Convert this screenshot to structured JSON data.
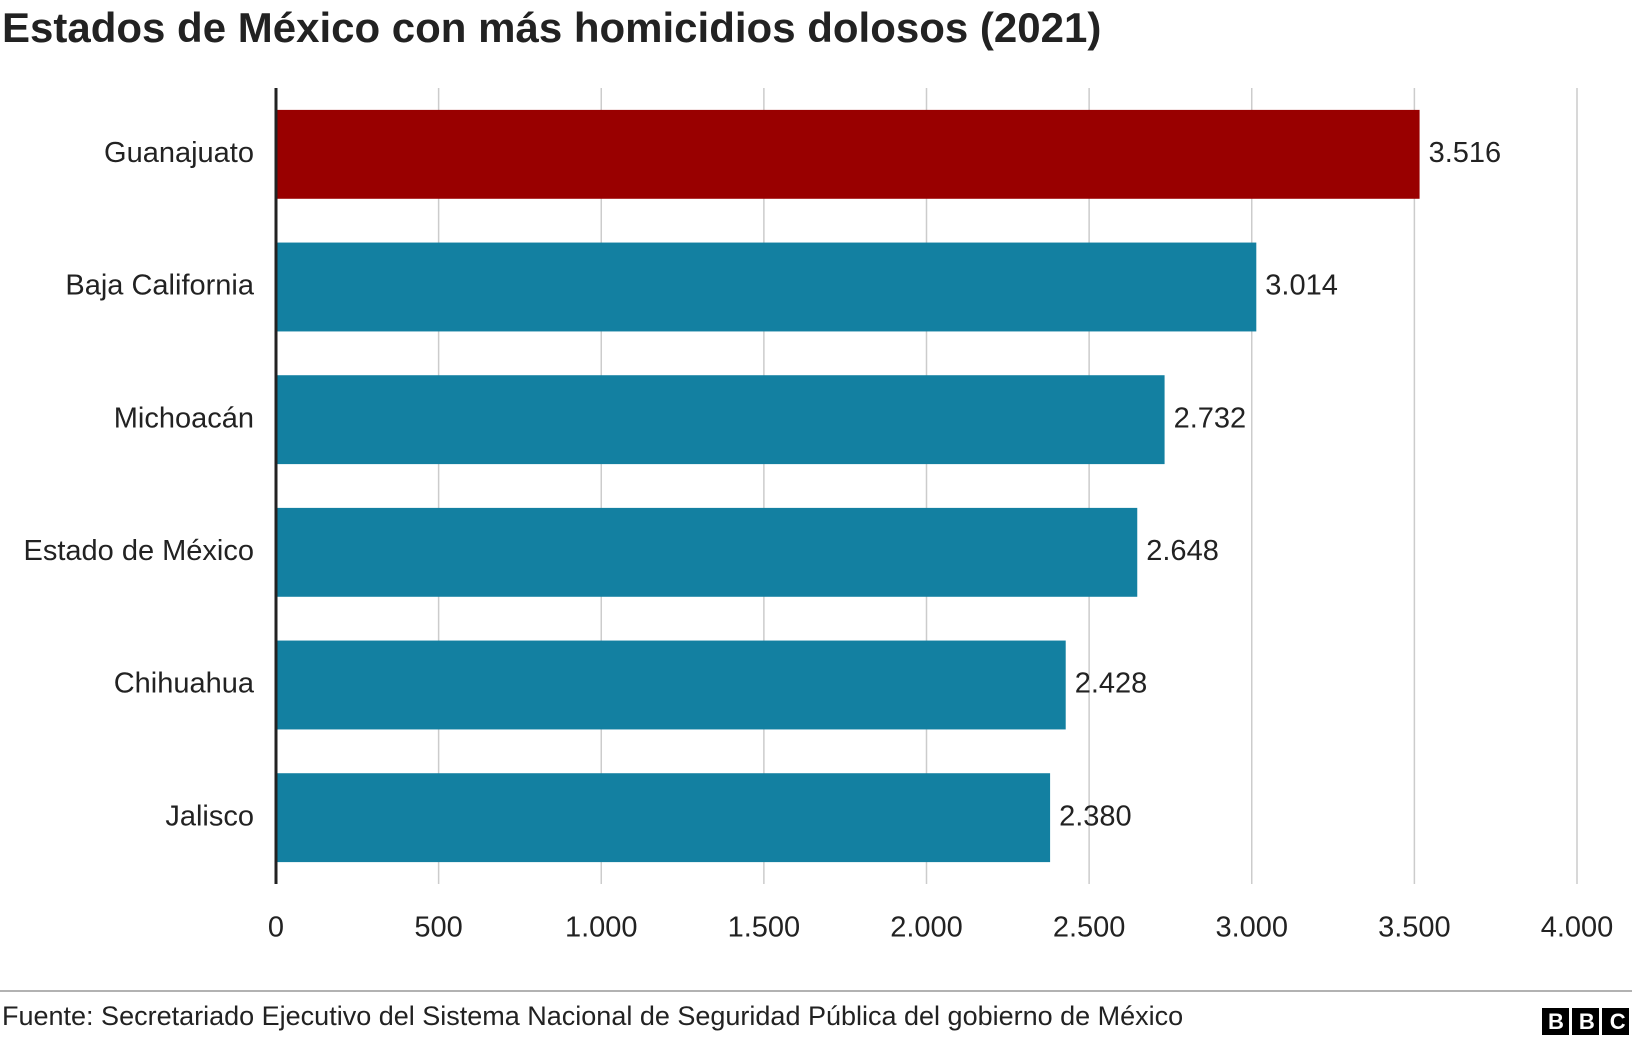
{
  "chart_data": {
    "type": "bar",
    "orientation": "horizontal",
    "title": "Estados de México con más homicidios dolosos (2021)",
    "categories": [
      "Guanajuato",
      "Baja California",
      "Michoacán",
      "Estado de México",
      "Chihuahua",
      "Jalisco"
    ],
    "values": [
      3516,
      3014,
      2732,
      2648,
      2428,
      2380
    ],
    "value_labels": [
      "3.516",
      "3.014",
      "2.732",
      "2.648",
      "2.428",
      "2.380"
    ],
    "colors": [
      "#990000",
      "#1380a1",
      "#1380a1",
      "#1380a1",
      "#1380a1",
      "#1380a1"
    ],
    "xlim": [
      0,
      4000
    ],
    "xticks": [
      0,
      500,
      {
        "value": 1000,
        "label": "1.000"
      },
      {
        "value": 1500,
        "label": "1.500"
      },
      {
        "value": 2000,
        "label": "2.000"
      },
      {
        "value": 2500,
        "label": "2.500"
      },
      {
        "value": 3000,
        "label": "3.000"
      },
      {
        "value": 3500,
        "label": "3.500"
      },
      {
        "value": 4000,
        "label": "4.000"
      }
    ],
    "grid": true,
    "source": "Fuente: Secretariado Ejecutivo del Sistema Nacional de Seguridad Pública del gobierno de México",
    "logo": "BBC"
  }
}
